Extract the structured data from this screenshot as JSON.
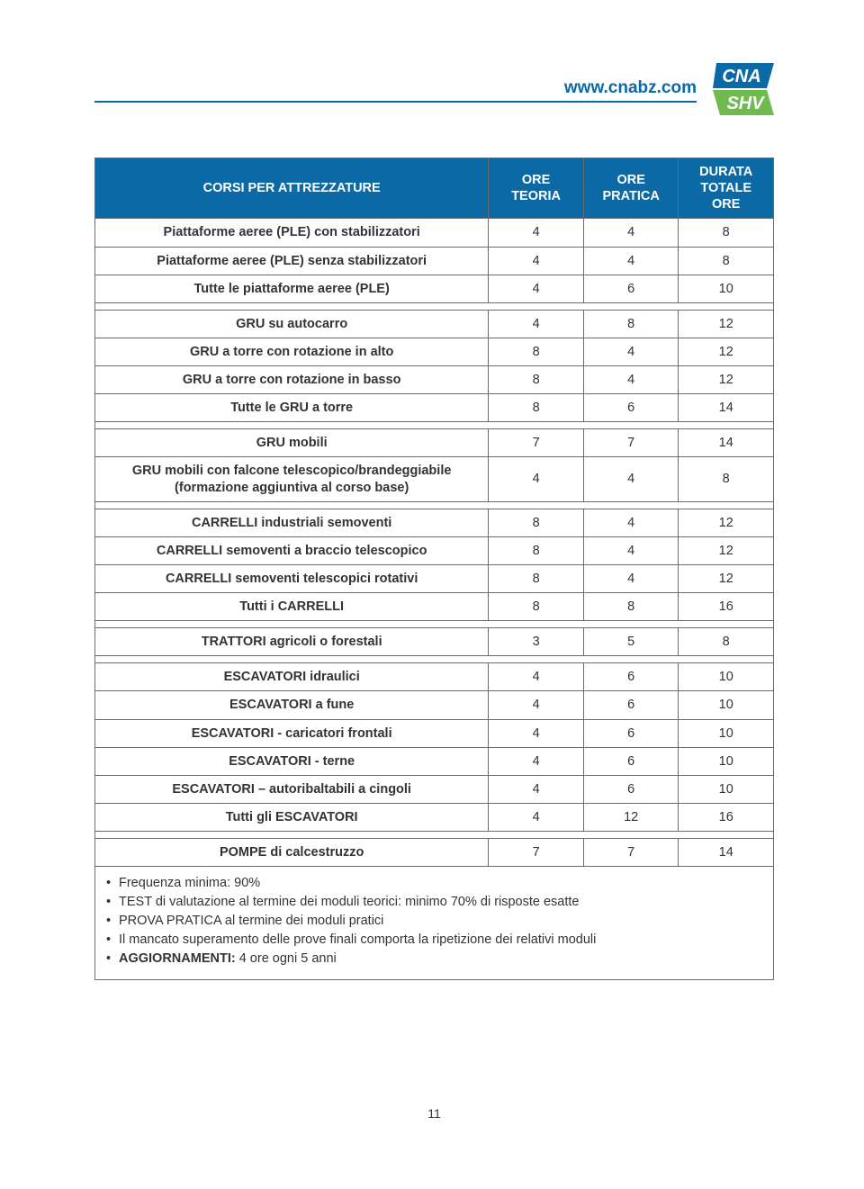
{
  "header": {
    "url": "www.cnabz.com"
  },
  "logo": {
    "top_text": "CNA",
    "bottom_text": "SHV",
    "top_bg": "#0b6aa5",
    "bottom_bg": "#70bb4f",
    "text_color": "#ffffff"
  },
  "table": {
    "title": "CORSI PER ATTREZZATURE",
    "cols": {
      "teoria_l1": "ORE",
      "teoria_l2": "TEORIA",
      "pratica_l1": "ORE",
      "pratica_l2": "PRATICA",
      "totale_l1": "DURATA",
      "totale_l2": "TOTALE ORE"
    },
    "groups": [
      {
        "rows": [
          {
            "name": "Piattaforme aeree (PLE) con stabilizzatori",
            "t": 4,
            "p": 4,
            "d": 8
          },
          {
            "name": "Piattaforme aeree (PLE)  senza stabilizzatori",
            "t": 4,
            "p": 4,
            "d": 8
          },
          {
            "name": "Tutte le piattaforme aeree (PLE)",
            "t": 4,
            "p": 6,
            "d": 10
          }
        ]
      },
      {
        "rows": [
          {
            "name": "GRU su autocarro",
            "t": 4,
            "p": 8,
            "d": 12
          },
          {
            "name": "GRU a torre con rotazione in alto",
            "t": 8,
            "p": 4,
            "d": 12
          },
          {
            "name": "GRU a torre con rotazione in basso",
            "t": 8,
            "p": 4,
            "d": 12
          },
          {
            "name": "Tutte le GRU a torre",
            "t": 8,
            "p": 6,
            "d": 14
          }
        ]
      },
      {
        "rows": [
          {
            "name": "GRU mobili",
            "t": 7,
            "p": 7,
            "d": 14
          },
          {
            "name": "GRU mobili con falcone telescopico/brandeggiabile",
            "sub": "(formazione aggiuntiva al corso base)",
            "t": 4,
            "p": 4,
            "d": 8
          }
        ]
      },
      {
        "rows": [
          {
            "name": "CARRELLI industriali semoventi",
            "t": 8,
            "p": 4,
            "d": 12
          },
          {
            "name": "CARRELLI semoventi a braccio telescopico",
            "t": 8,
            "p": 4,
            "d": 12
          },
          {
            "name": "CARRELLI semoventi telescopici rotativi",
            "t": 8,
            "p": 4,
            "d": 12
          },
          {
            "name": "Tutti i CARRELLI",
            "t": 8,
            "p": 8,
            "d": 16
          }
        ]
      },
      {
        "rows": [
          {
            "name": "TRATTORI agricoli o forestali",
            "t": 3,
            "p": 5,
            "d": 8
          }
        ]
      },
      {
        "rows": [
          {
            "name": "ESCAVATORI idraulici",
            "t": 4,
            "p": 6,
            "d": 10
          },
          {
            "name": "ESCAVATORI a fune",
            "t": 4,
            "p": 6,
            "d": 10
          },
          {
            "name": "ESCAVATORI - caricatori frontali",
            "t": 4,
            "p": 6,
            "d": 10
          },
          {
            "name": "ESCAVATORI - terne",
            "t": 4,
            "p": 6,
            "d": 10
          },
          {
            "name": "ESCAVATORI – autoribaltabili a cingoli",
            "t": 4,
            "p": 6,
            "d": 10
          },
          {
            "name": "Tutti gli ESCAVATORI",
            "t": 4,
            "p": 12,
            "d": 16
          }
        ]
      },
      {
        "rows": [
          {
            "name": "POMPE di calcestruzzo",
            "t": 7,
            "p": 7,
            "d": 14
          }
        ]
      }
    ]
  },
  "notes": [
    "Frequenza minima: 90%",
    "TEST di valutazione al termine dei moduli teorici: minimo 70% di risposte esatte",
    "PROVA PRATICA al termine dei moduli pratici",
    "Il mancato superamento delle prove finali comporta la ripetizione dei relativi moduli",
    "AGGIORNAMENTI: 4 ore ogni 5 anni"
  ],
  "page_number": "11"
}
